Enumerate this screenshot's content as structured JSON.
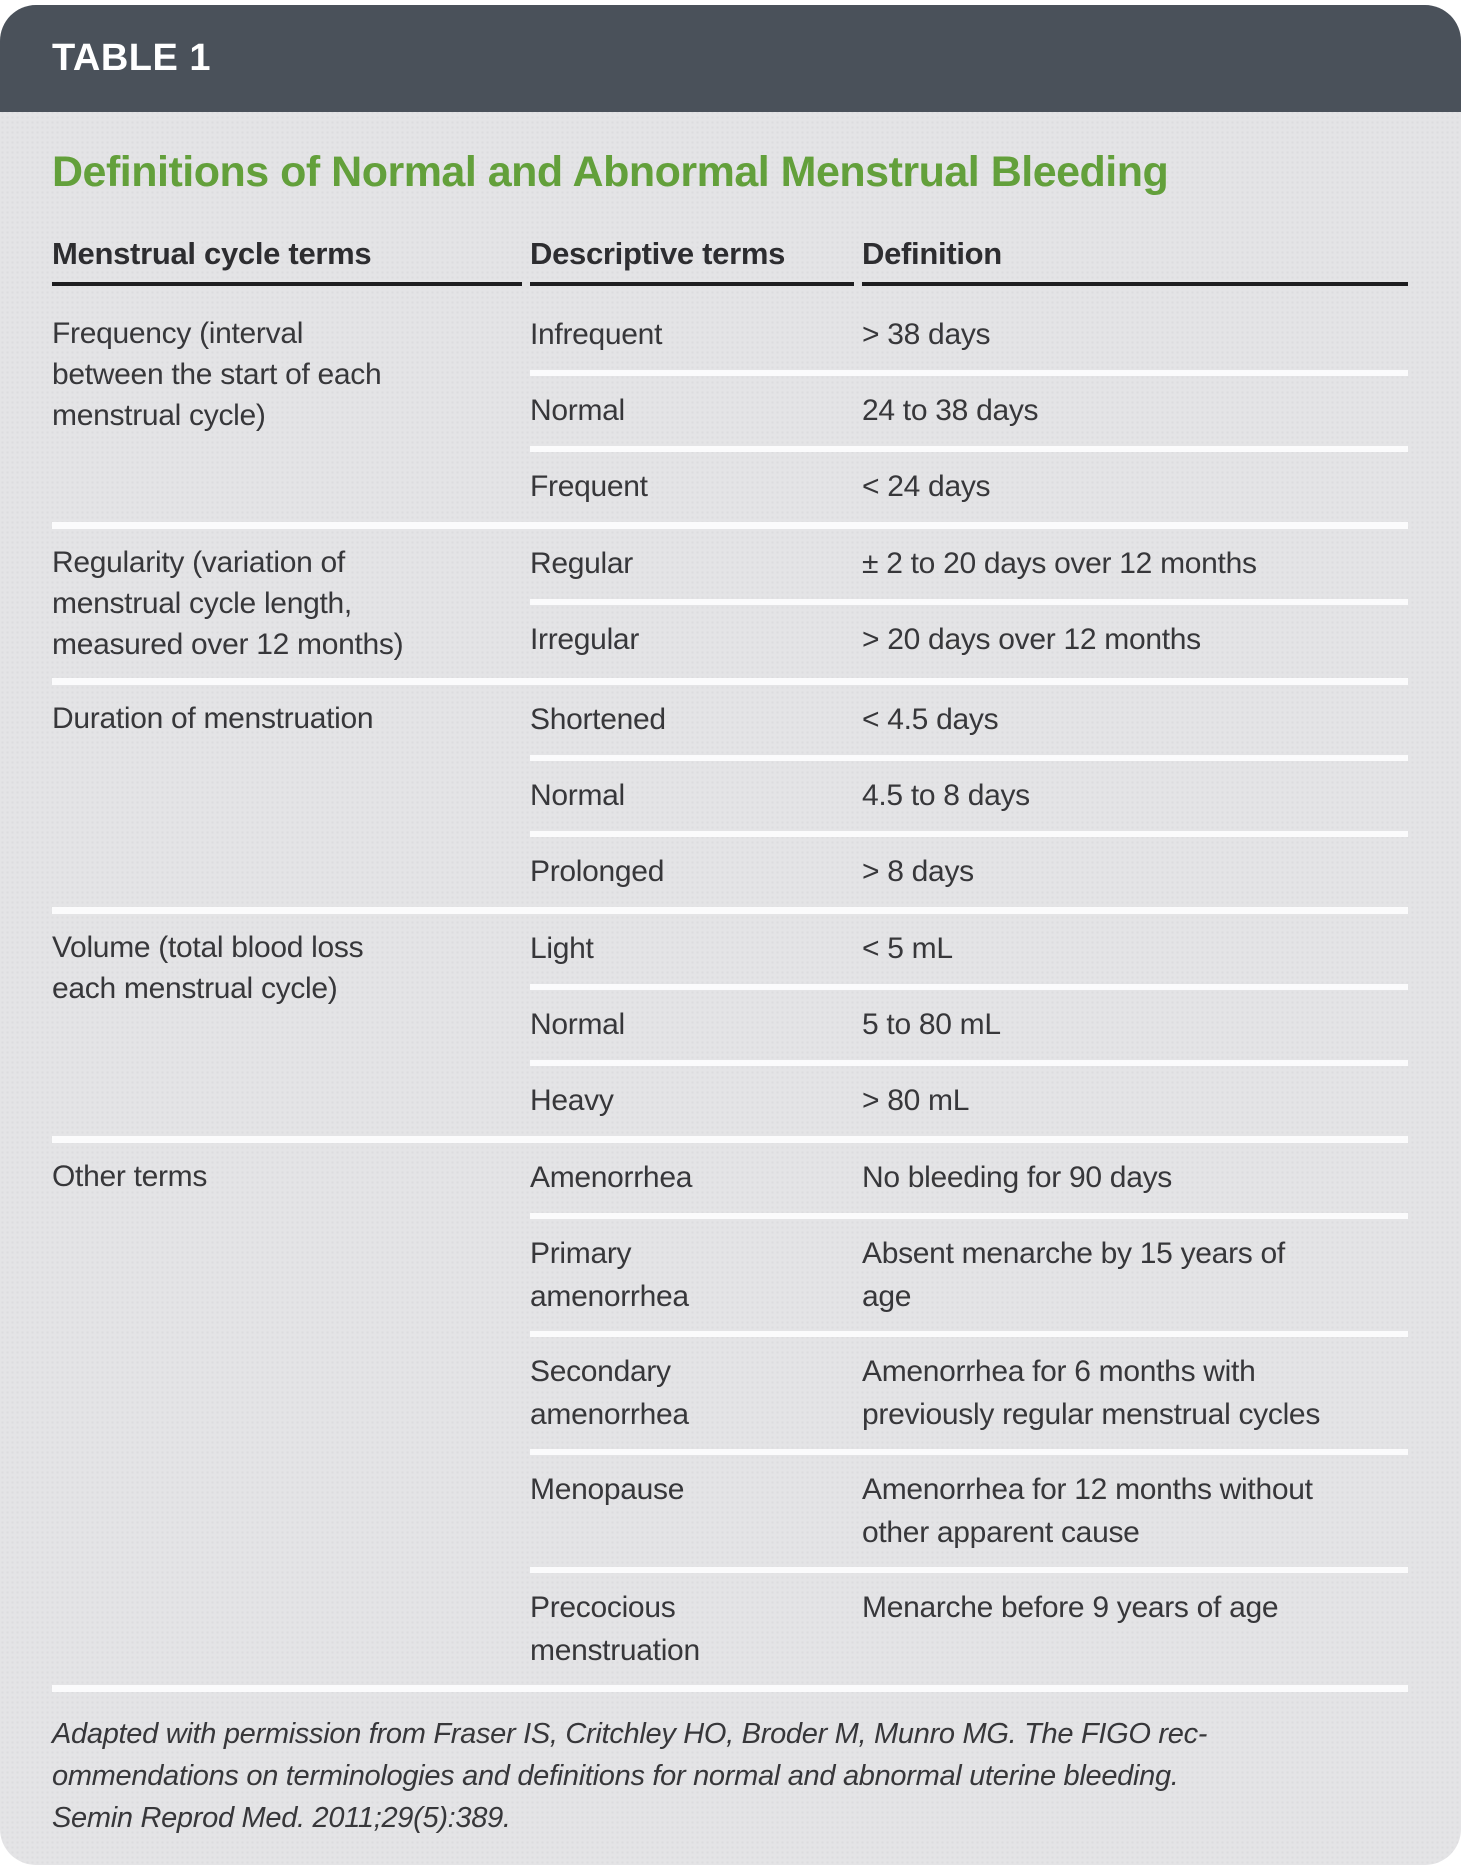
{
  "header": {
    "table_label": "TABLE 1"
  },
  "title": "Definitions of Normal and Abnormal Menstrual Bleeding",
  "columns": [
    "Menstrual cycle terms",
    "Descriptive terms",
    "Definition"
  ],
  "table": {
    "groups": [
      {
        "term": "Frequency (interval between the start of each menstrual cycle)",
        "rows": [
          {
            "descriptive": "Infrequent",
            "definition": "> 38 days"
          },
          {
            "descriptive": "Normal",
            "definition": "24 to 38 days"
          },
          {
            "descriptive": "Frequent",
            "definition": "< 24 days"
          }
        ]
      },
      {
        "term": "Regularity (variation of menstrual cycle length, measured over 12 months)",
        "rows": [
          {
            "descriptive": "Regular",
            "definition": "± 2 to 20 days over 12 months"
          },
          {
            "descriptive": "Irregular",
            "definition": "> 20 days over 12 months"
          }
        ]
      },
      {
        "term": "Duration of menstruation",
        "rows": [
          {
            "descriptive": "Shortened",
            "definition": "< 4.5 days"
          },
          {
            "descriptive": "Normal",
            "definition": "4.5 to 8 days"
          },
          {
            "descriptive": "Prolonged",
            "definition": "> 8 days"
          }
        ]
      },
      {
        "term": "Volume (total blood loss each menstrual cycle)",
        "rows": [
          {
            "descriptive": "Light",
            "definition": "< 5 mL"
          },
          {
            "descriptive": "Normal",
            "definition": "5 to 80 mL"
          },
          {
            "descriptive": "Heavy",
            "definition": "> 80 mL"
          }
        ]
      },
      {
        "term": "Other terms",
        "rows": [
          {
            "descriptive": "Amenorrhea",
            "definition": "No bleeding for 90 days"
          },
          {
            "descriptive": "Primary amenorrhea",
            "definition": "Absent menarche by 15 years of age"
          },
          {
            "descriptive": "Secondary amenorrhea",
            "definition": "Amenorrhea for 6 months with previously regular menstrual cycles"
          },
          {
            "descriptive": "Menopause",
            "definition": "Amenorrhea for 12 months without other apparent cause"
          },
          {
            "descriptive": "Precocious menstruation",
            "definition": "Menarche before 9 years of age"
          }
        ]
      }
    ]
  },
  "footnote": {
    "lines": [
      "Adapted with permission from Fraser IS, Critchley HO, Broder M, Munro MG. The FIGO rec-",
      "ommendations on terminologies and definitions for normal and abnormal uterine bleeding.",
      "Semin Reprod Med. 2011;29(5):389."
    ]
  },
  "colors": {
    "header_bar": "#4a515a",
    "header_text": "#ffffff",
    "title_green": "#63a03b",
    "body_background": "#e4e4e6",
    "body_text": "#37373a",
    "separator": "#fbfbfc",
    "header_rule": "#1e1e20"
  }
}
